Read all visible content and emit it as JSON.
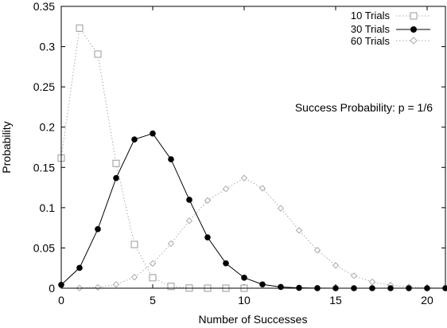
{
  "chart_data": {
    "type": "line",
    "xlabel": "Number of Successes",
    "ylabel": "Probability",
    "xlim": [
      0,
      21
    ],
    "ylim": [
      0,
      0.35
    ],
    "x_ticks": [
      0,
      5,
      10,
      15,
      20
    ],
    "x_tick_labels": [
      "0",
      "5",
      "10",
      "15",
      "20"
    ],
    "y_ticks": [
      0,
      0.05,
      0.1,
      0.15,
      0.2,
      0.25,
      0.3,
      0.35
    ],
    "y_tick_labels": [
      "0",
      "0.05",
      "0.1",
      "0.15",
      "0.2",
      "0.25",
      "0.3",
      "0.35"
    ],
    "grid": false,
    "legend_position": "top-right",
    "annotation": "Success Probability: p = 1/6",
    "series": [
      {
        "name": "10 Trials",
        "marker": "open-square",
        "line_style": "dotted",
        "color": "#aaaaaa",
        "x": [
          0,
          1,
          2,
          3,
          4,
          5,
          6,
          7,
          8,
          9,
          10
        ],
        "values": [
          0.1615,
          0.323,
          0.2907,
          0.155,
          0.0543,
          0.013,
          0.0022,
          0.0002,
          0.0,
          0.0,
          0.0
        ]
      },
      {
        "name": "30 Trials",
        "marker": "filled-circle",
        "line_style": "solid",
        "color": "#000000",
        "x": [
          0,
          1,
          2,
          3,
          4,
          5,
          6,
          7,
          8,
          9,
          10,
          11,
          12,
          13,
          14,
          15,
          16,
          17,
          18,
          19,
          20,
          21
        ],
        "values": [
          0.0042,
          0.0253,
          0.0733,
          0.1368,
          0.1847,
          0.1921,
          0.1601,
          0.1098,
          0.0631,
          0.0309,
          0.013,
          0.0047,
          0.0015,
          0.0004,
          0.0001,
          0.0,
          0.0,
          0.0,
          0.0,
          0.0,
          0.0,
          0.0
        ]
      },
      {
        "name": "60 Trials",
        "marker": "open-diamond",
        "line_style": "dotted",
        "color": "#aaaaaa",
        "x": [
          1,
          2,
          3,
          4,
          5,
          6,
          7,
          8,
          9,
          10,
          11,
          12,
          13,
          14,
          15,
          16,
          17,
          18,
          19,
          20,
          21
        ],
        "values": [
          0.0002,
          0.0011,
          0.0047,
          0.0137,
          0.0307,
          0.0553,
          0.0838,
          0.1089,
          0.1234,
          0.1368,
          0.1241,
          0.0993,
          0.0718,
          0.0472,
          0.0283,
          0.0155,
          0.0078,
          0.0037,
          0.0016,
          0.0006,
          0.0002
        ]
      }
    ]
  }
}
